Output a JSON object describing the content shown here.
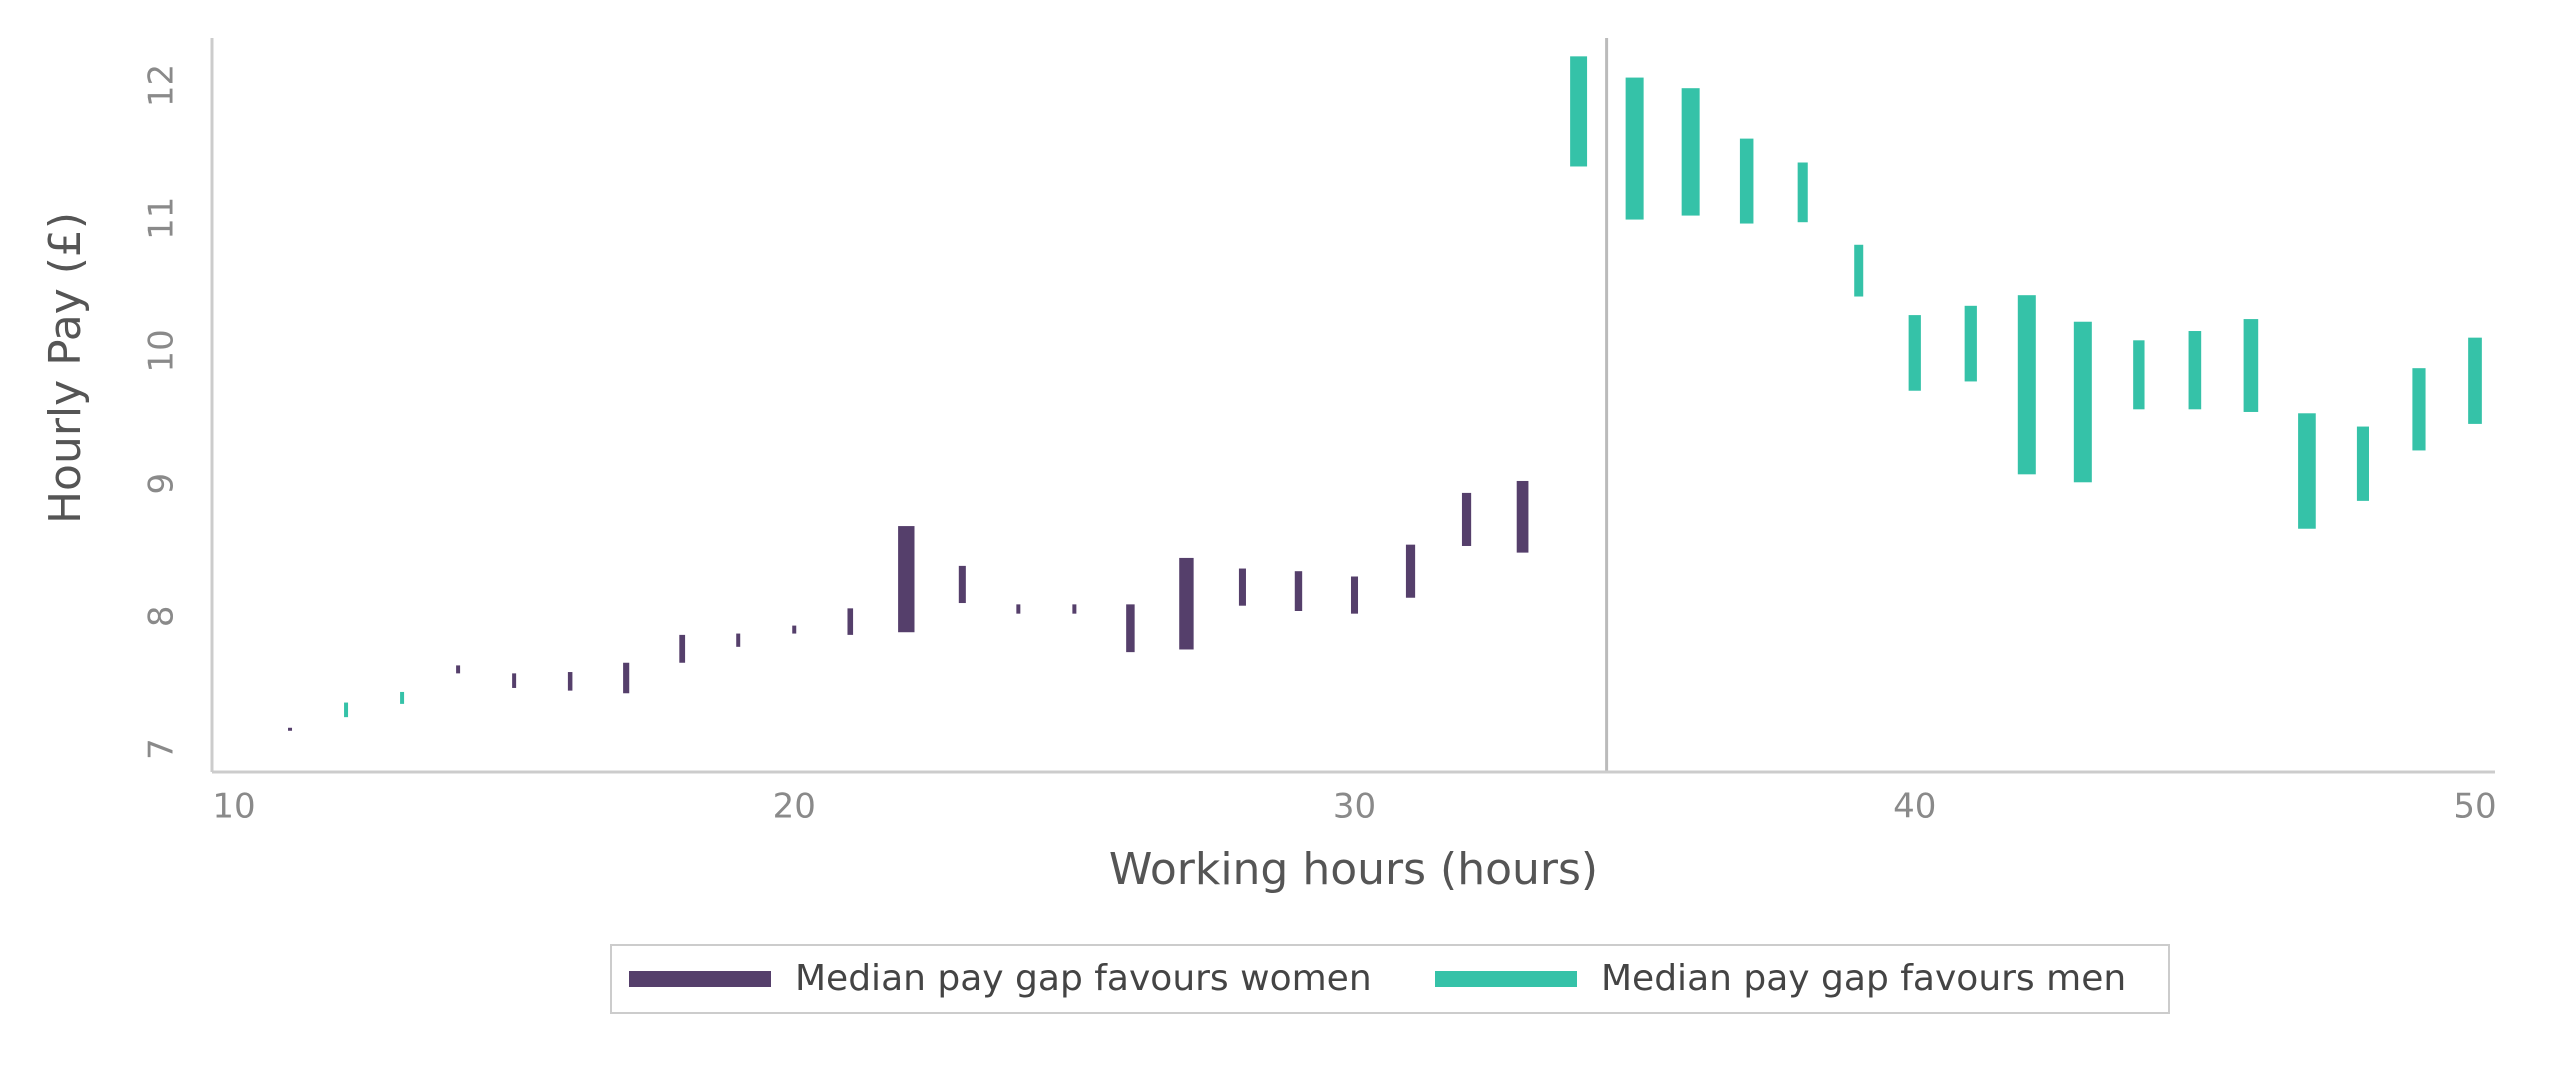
{
  "chart_data": {
    "type": "range-bar",
    "xlabel": "Working hours (hours)",
    "ylabel": "Hourly Pay (£)",
    "xlim": [
      10,
      50
    ],
    "ylim": [
      7,
      12.2
    ],
    "x_ticks": [
      "10",
      "20",
      "30",
      "40",
      "50"
    ],
    "y_ticks": [
      "7",
      "8",
      "9",
      "10",
      "11",
      "12"
    ],
    "reference_line_x": 34.5,
    "grid": false,
    "legend_position": "bottom",
    "colors": {
      "favours_women": "#553f6b",
      "favours_men": "#35c2a8",
      "axis": "#cccccc",
      "reference_line": "#bbbbbb"
    },
    "series": [
      {
        "name": "Median pay gap favours women",
        "color": "#553f6b",
        "ranges": [
          {
            "x": 11,
            "low": 7.14,
            "high": 7.16
          },
          {
            "x": 14,
            "low": 7.57,
            "high": 7.63
          },
          {
            "x": 15,
            "low": 7.46,
            "high": 7.57
          },
          {
            "x": 16,
            "low": 7.44,
            "high": 7.58
          },
          {
            "x": 17,
            "low": 7.42,
            "high": 7.65
          },
          {
            "x": 18,
            "low": 7.65,
            "high": 7.86
          },
          {
            "x": 19,
            "low": 7.77,
            "high": 7.87
          },
          {
            "x": 20,
            "low": 7.87,
            "high": 7.93
          },
          {
            "x": 21,
            "low": 7.86,
            "high": 8.06
          },
          {
            "x": 22,
            "low": 7.88,
            "high": 8.68
          },
          {
            "x": 23,
            "low": 8.1,
            "high": 8.38
          },
          {
            "x": 24,
            "low": 8.02,
            "high": 8.09
          },
          {
            "x": 25,
            "low": 8.02,
            "high": 8.09
          },
          {
            "x": 26,
            "low": 7.73,
            "high": 8.09
          },
          {
            "x": 27,
            "low": 7.75,
            "high": 8.44
          },
          {
            "x": 28,
            "low": 8.08,
            "high": 8.36
          },
          {
            "x": 29,
            "low": 8.04,
            "high": 8.34
          },
          {
            "x": 30,
            "low": 8.02,
            "high": 8.3
          },
          {
            "x": 31,
            "low": 8.14,
            "high": 8.54
          },
          {
            "x": 32,
            "low": 8.53,
            "high": 8.93
          },
          {
            "x": 33,
            "low": 8.48,
            "high": 9.02
          }
        ]
      },
      {
        "name": "Median pay gap favours men",
        "color": "#35c2a8",
        "ranges": [
          {
            "x": 12,
            "low": 7.24,
            "high": 7.35
          },
          {
            "x": 13,
            "low": 7.34,
            "high": 7.43
          },
          {
            "x": 34,
            "low": 11.39,
            "high": 12.22
          },
          {
            "x": 35,
            "low": 10.99,
            "high": 12.06
          },
          {
            "x": 36,
            "low": 11.02,
            "high": 11.98
          },
          {
            "x": 37,
            "low": 10.96,
            "high": 11.6
          },
          {
            "x": 38,
            "low": 10.97,
            "high": 11.42
          },
          {
            "x": 39,
            "low": 10.41,
            "high": 10.8
          },
          {
            "x": 40,
            "low": 9.7,
            "high": 10.27
          },
          {
            "x": 41,
            "low": 9.77,
            "high": 10.34
          },
          {
            "x": 42,
            "low": 9.07,
            "high": 10.42
          },
          {
            "x": 43,
            "low": 9.01,
            "high": 10.22
          },
          {
            "x": 44,
            "low": 9.56,
            "high": 10.08
          },
          {
            "x": 45,
            "low": 9.56,
            "high": 10.15
          },
          {
            "x": 46,
            "low": 9.54,
            "high": 10.24
          },
          {
            "x": 47,
            "low": 8.66,
            "high": 9.53
          },
          {
            "x": 48,
            "low": 8.87,
            "high": 9.43
          },
          {
            "x": 49,
            "low": 9.25,
            "high": 9.87
          },
          {
            "x": 50,
            "low": 9.45,
            "high": 10.1
          }
        ]
      }
    ],
    "legend": [
      {
        "label": "Median pay gap favours women",
        "color": "#553f6b"
      },
      {
        "label": "Median pay gap favours men",
        "color": "#35c2a8"
      }
    ]
  }
}
